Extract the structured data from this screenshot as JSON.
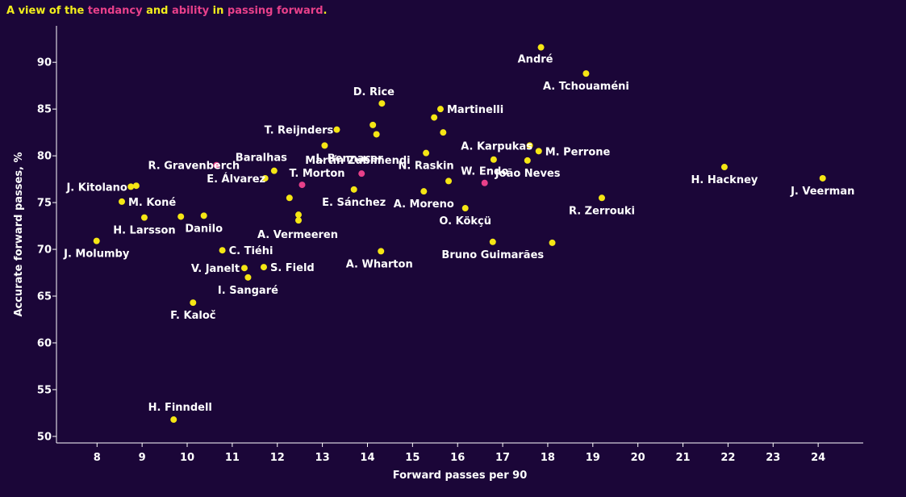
{
  "title": {
    "t1": "A view of the ",
    "t2": "tendancy",
    "t3": " and ",
    "t4": "ability",
    "t5": " in ",
    "t6": "passing forward",
    "t7": "."
  },
  "colors": {
    "background": "#1b0638",
    "point": "#f5e614",
    "highlight": "#e8408a",
    "text": "#ffffff",
    "title": "#f2ee1c"
  },
  "chart_data": {
    "type": "scatter",
    "xlabel": "Forward passes per 90",
    "ylabel": "Accurate forward passes, %",
    "xlim": [
      7.1,
      25.0
    ],
    "ylim": [
      49.3,
      93.9
    ],
    "xticks": [
      8,
      9,
      10,
      11,
      12,
      13,
      14,
      15,
      16,
      17,
      18,
      19,
      20,
      21,
      22,
      23,
      24
    ],
    "yticks": [
      50,
      55,
      60,
      65,
      70,
      75,
      80,
      85,
      90
    ],
    "grid": false,
    "points": [
      {
        "label": "André",
        "x": 17.85,
        "y": 91.6,
        "highlight": false
      },
      {
        "label": "A. Tchouaméni",
        "x": 18.85,
        "y": 88.8,
        "highlight": false
      },
      {
        "label": "D. Rice",
        "x": 14.32,
        "y": 85.6,
        "highlight": false
      },
      {
        "label": "Martinelli",
        "x": 15.62,
        "y": 85.0,
        "highlight": false
      },
      {
        "label": "",
        "x": 15.48,
        "y": 84.1,
        "highlight": false
      },
      {
        "label": "T. Reijnders",
        "x": 13.32,
        "y": 82.8,
        "highlight": false
      },
      {
        "label": "",
        "x": 14.12,
        "y": 83.3,
        "highlight": false
      },
      {
        "label": "",
        "x": 14.2,
        "y": 82.3,
        "highlight": false
      },
      {
        "label": "",
        "x": 15.68,
        "y": 82.5,
        "highlight": false
      },
      {
        "label": "I. Bennacer",
        "x": 13.05,
        "y": 81.1,
        "highlight": false
      },
      {
        "label": "A. Karpukas",
        "x": 17.6,
        "y": 81.1,
        "highlight": false
      },
      {
        "label": "M. Perrone",
        "x": 17.8,
        "y": 80.5,
        "highlight": false
      },
      {
        "label": "N. Raskin",
        "x": 15.3,
        "y": 80.3,
        "highlight": false
      },
      {
        "label": "",
        "x": 16.8,
        "y": 79.6,
        "highlight": false
      },
      {
        "label": "João Neves",
        "x": 17.55,
        "y": 79.5,
        "highlight": false
      },
      {
        "label": "R. Gravenberch",
        "x": 10.65,
        "y": 79.0,
        "highlight": true
      },
      {
        "label": "Baralhas",
        "x": 11.93,
        "y": 78.4,
        "highlight": false
      },
      {
        "label": "Martín Zubimendi",
        "x": 13.87,
        "y": 78.1,
        "highlight": true
      },
      {
        "label": "E. Álvarez",
        "x": 11.73,
        "y": 77.6,
        "highlight": false
      },
      {
        "label": "T. Morton",
        "x": 12.55,
        "y": 76.9,
        "highlight": true
      },
      {
        "label": "",
        "x": 15.8,
        "y": 77.3,
        "highlight": false
      },
      {
        "label": "H. Hackney",
        "x": 21.92,
        "y": 78.8,
        "highlight": false
      },
      {
        "label": "J. Veerman",
        "x": 24.1,
        "y": 77.6,
        "highlight": false
      },
      {
        "label": "J. Kitolano",
        "x": 8.75,
        "y": 76.7,
        "highlight": false
      },
      {
        "label": "",
        "x": 8.87,
        "y": 76.8,
        "highlight": false
      },
      {
        "label": "E. Sánchez",
        "x": 13.7,
        "y": 76.4,
        "highlight": false
      },
      {
        "label": "A. Moreno",
        "x": 15.25,
        "y": 76.2,
        "highlight": false
      },
      {
        "label": "W. Endo",
        "x": 16.6,
        "y": 77.1,
        "highlight": true
      },
      {
        "label": "",
        "x": 12.27,
        "y": 75.5,
        "highlight": false
      },
      {
        "label": "R. Zerrouki",
        "x": 19.2,
        "y": 75.5,
        "highlight": false
      },
      {
        "label": "M. Koné",
        "x": 8.55,
        "y": 75.1,
        "highlight": false
      },
      {
        "label": "O. Kökçü",
        "x": 16.17,
        "y": 74.4,
        "highlight": false
      },
      {
        "label": "H. Larsson",
        "x": 9.05,
        "y": 73.4,
        "highlight": false
      },
      {
        "label": "",
        "x": 9.86,
        "y": 73.5,
        "highlight": false
      },
      {
        "label": "Danilo",
        "x": 10.37,
        "y": 73.6,
        "highlight": false
      },
      {
        "label": "",
        "x": 12.47,
        "y": 73.7,
        "highlight": false
      },
      {
        "label": "A. Vermeeren",
        "x": 12.47,
        "y": 73.1,
        "highlight": false
      },
      {
        "label": "J. Molumby",
        "x": 7.99,
        "y": 70.9,
        "highlight": false
      },
      {
        "label": "Bruno Guimarães",
        "x": 16.78,
        "y": 70.8,
        "highlight": false
      },
      {
        "label": "",
        "x": 18.1,
        "y": 70.7,
        "highlight": false
      },
      {
        "label": "C. Tiéhi",
        "x": 10.78,
        "y": 69.9,
        "highlight": false
      },
      {
        "label": "A. Wharton",
        "x": 14.3,
        "y": 69.8,
        "highlight": false
      },
      {
        "label": "V. Janelt",
        "x": 11.27,
        "y": 68.0,
        "highlight": false
      },
      {
        "label": "S. Field",
        "x": 11.7,
        "y": 68.1,
        "highlight": false
      },
      {
        "label": "I. Sangaré",
        "x": 11.35,
        "y": 67.0,
        "highlight": false
      },
      {
        "label": "F. Kaloč",
        "x": 10.13,
        "y": 64.3,
        "highlight": false
      },
      {
        "label": "H. Finndell",
        "x": 9.7,
        "y": 51.8,
        "highlight": false
      }
    ]
  }
}
